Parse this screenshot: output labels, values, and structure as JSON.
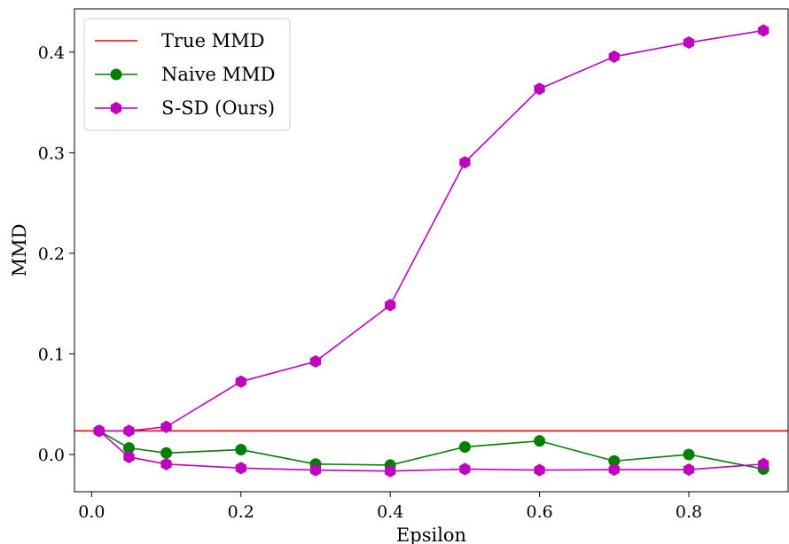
{
  "chart_data": {
    "type": "line",
    "xlabel": "Epsilon",
    "ylabel": "MMD",
    "xlim": [
      -0.023,
      0.933
    ],
    "ylim": [
      -0.037,
      0.443
    ],
    "xticks": [
      0.0,
      0.2,
      0.4,
      0.6,
      0.8
    ],
    "xtick_labels": [
      "0.0",
      "0.2",
      "0.4",
      "0.6",
      "0.8"
    ],
    "yticks": [
      0.0,
      0.1,
      0.2,
      0.3,
      0.4
    ],
    "ytick_labels": [
      "0.0",
      "0.1",
      "0.2",
      "0.3",
      "0.4"
    ],
    "grid": false,
    "legend_position": "top-left",
    "x": [
      0.01,
      0.05,
      0.1,
      0.2,
      0.3,
      0.4,
      0.5,
      0.6,
      0.7,
      0.8,
      0.9
    ],
    "series": [
      {
        "name": "True MMD",
        "kind": "hline",
        "value": 0.0235,
        "color": "#ff0000",
        "marker": "none"
      },
      {
        "name": "Naive MMD",
        "kind": "line",
        "values": [
          0.0235,
          0.0065,
          0.0015,
          0.0048,
          -0.0095,
          -0.0105,
          0.0075,
          0.0135,
          -0.0065,
          0.0,
          -0.0145
        ],
        "color": "#008000",
        "marker": "circle"
      },
      {
        "name": "S-SD (Ours)",
        "kind": "line",
        "values": [
          0.0235,
          0.0235,
          0.0275,
          0.0725,
          0.0925,
          0.1485,
          0.2905,
          0.3635,
          0.3955,
          0.4095,
          0.4215
        ],
        "color": "#bf00bf",
        "marker": "hexagon"
      },
      {
        "name": "S-SD (Ours)",
        "kind": "line",
        "values": [
          0.0235,
          -0.0025,
          -0.0095,
          -0.0135,
          -0.0155,
          -0.0165,
          -0.0145,
          -0.0155,
          -0.015,
          -0.015,
          -0.0095
        ],
        "color": "#bf00bf",
        "marker": "hexagon"
      }
    ]
  }
}
